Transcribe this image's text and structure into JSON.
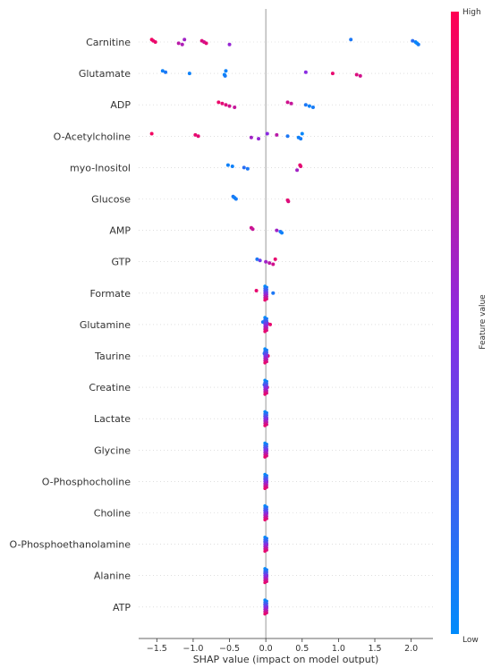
{
  "chart_data": {
    "type": "scatter",
    "subtype": "shap-beeswarm",
    "xlabel": "SHAP value (impact on model output)",
    "xlim": [
      -1.75,
      2.3
    ],
    "xticks": [
      -1.5,
      -1.0,
      -0.5,
      0.0,
      0.5,
      1.0,
      1.5,
      2.0
    ],
    "xtick_labels": [
      "−1.5",
      "−1.0",
      "−0.5",
      "0.0",
      "0.5",
      "1.0",
      "1.5",
      "2.0"
    ],
    "colorbar": {
      "label": "Feature value",
      "high_label": "High",
      "low_label": "Low",
      "low_color": "#008bfb",
      "mid_color": "#8a2be2",
      "high_color": "#ff0052"
    },
    "features": [
      {
        "name": "Carnitine",
        "points": [
          [
            -1.57,
            0.95
          ],
          [
            -1.55,
            0.9
          ],
          [
            -1.52,
            0.92
          ],
          [
            -1.2,
            0.7
          ],
          [
            -1.15,
            0.65
          ],
          [
            -1.12,
            0.6
          ],
          [
            -0.88,
            0.85
          ],
          [
            -0.85,
            0.8
          ],
          [
            -0.82,
            0.88
          ],
          [
            -0.5,
            0.55
          ],
          [
            1.17,
            0.1
          ],
          [
            2.02,
            0.15
          ],
          [
            2.06,
            0.05
          ],
          [
            2.08,
            0.0
          ],
          [
            2.1,
            0.08
          ]
        ]
      },
      {
        "name": "Glutamate",
        "points": [
          [
            -1.42,
            0.05
          ],
          [
            -1.38,
            0.1
          ],
          [
            -1.05,
            0.05
          ],
          [
            -0.57,
            0.02
          ],
          [
            -0.56,
            0.08
          ],
          [
            -0.55,
            0.05
          ],
          [
            0.55,
            0.5
          ],
          [
            0.92,
            0.9
          ],
          [
            1.25,
            0.85
          ],
          [
            1.3,
            0.8
          ]
        ]
      },
      {
        "name": "ADP",
        "points": [
          [
            -0.65,
            0.92
          ],
          [
            -0.6,
            0.88
          ],
          [
            -0.55,
            0.85
          ],
          [
            -0.5,
            0.8
          ],
          [
            -0.43,
            0.75
          ],
          [
            0.3,
            0.8
          ],
          [
            0.35,
            0.75
          ],
          [
            0.55,
            0.1
          ],
          [
            0.6,
            0.05
          ],
          [
            0.65,
            0.08
          ]
        ]
      },
      {
        "name": "O-Acetylcholine",
        "points": [
          [
            -1.57,
            0.95
          ],
          [
            -0.97,
            0.9
          ],
          [
            -0.93,
            0.88
          ],
          [
            -0.2,
            0.6
          ],
          [
            -0.1,
            0.55
          ],
          [
            0.02,
            0.5
          ],
          [
            0.15,
            0.7
          ],
          [
            0.3,
            0.1
          ],
          [
            0.45,
            0.05
          ],
          [
            0.48,
            0.08
          ],
          [
            0.5,
            0.02
          ]
        ]
      },
      {
        "name": "myo-Inositol",
        "points": [
          [
            -0.52,
            0.05
          ],
          [
            -0.46,
            0.05
          ],
          [
            -0.3,
            0.15
          ],
          [
            -0.25,
            0.1
          ],
          [
            0.43,
            0.6
          ],
          [
            0.47,
            0.9
          ],
          [
            0.48,
            0.88
          ]
        ]
      },
      {
        "name": "Glucose",
        "points": [
          [
            -0.45,
            0.1
          ],
          [
            -0.43,
            0.05
          ],
          [
            -0.41,
            0.08
          ],
          [
            0.3,
            0.9
          ],
          [
            0.31,
            0.85
          ]
        ]
      },
      {
        "name": "AMP",
        "points": [
          [
            -0.2,
            0.8
          ],
          [
            -0.18,
            0.75
          ],
          [
            0.15,
            0.6
          ],
          [
            0.2,
            0.1
          ],
          [
            0.22,
            0.05
          ]
        ]
      },
      {
        "name": "GTP",
        "points": [
          [
            -0.12,
            0.1
          ],
          [
            -0.08,
            0.4
          ],
          [
            0.0,
            0.6
          ],
          [
            0.05,
            0.7
          ],
          [
            0.1,
            0.8
          ],
          [
            0.13,
            0.9
          ]
        ]
      },
      {
        "name": "Formate",
        "points": [
          [
            -0.13,
            0.9
          ],
          [
            0.0,
            0.6
          ],
          [
            0.1,
            0.1
          ]
        ]
      },
      {
        "name": "Glutamine",
        "points": [
          [
            -0.04,
            0.1
          ],
          [
            0.02,
            0.8
          ],
          [
            0.06,
            0.9
          ]
        ]
      },
      {
        "name": "Taurine",
        "points": [
          [
            -0.02,
            0.1
          ],
          [
            0.01,
            0.85
          ],
          [
            0.03,
            0.9
          ]
        ]
      },
      {
        "name": "Creatine",
        "points": [
          [
            -0.02,
            0.2
          ],
          [
            0.0,
            0.5
          ],
          [
            0.02,
            0.85
          ]
        ]
      },
      {
        "name": "Lactate",
        "points": [
          [
            -0.01,
            0.2
          ],
          [
            0.0,
            0.5
          ],
          [
            0.01,
            0.8
          ]
        ]
      },
      {
        "name": "Glycine",
        "points": [
          [
            -0.01,
            0.2
          ],
          [
            0.0,
            0.5
          ],
          [
            0.01,
            0.8
          ]
        ]
      },
      {
        "name": "O-Phosphocholine",
        "points": [
          [
            -0.01,
            0.2
          ],
          [
            0.0,
            0.5
          ],
          [
            0.01,
            0.8
          ]
        ]
      },
      {
        "name": "Choline",
        "points": [
          [
            -0.01,
            0.2
          ],
          [
            0.0,
            0.5
          ],
          [
            0.01,
            0.8
          ]
        ]
      },
      {
        "name": "O-Phosphoethanolamine",
        "points": [
          [
            -0.01,
            0.2
          ],
          [
            0.0,
            0.5
          ],
          [
            0.01,
            0.8
          ]
        ]
      },
      {
        "name": "Alanine",
        "points": [
          [
            -0.01,
            0.2
          ],
          [
            0.0,
            0.5
          ],
          [
            0.01,
            0.8
          ]
        ]
      },
      {
        "name": "ATP",
        "points": [
          [
            -0.01,
            0.2
          ],
          [
            0.0,
            0.5
          ],
          [
            0.01,
            0.8
          ]
        ]
      }
    ]
  }
}
